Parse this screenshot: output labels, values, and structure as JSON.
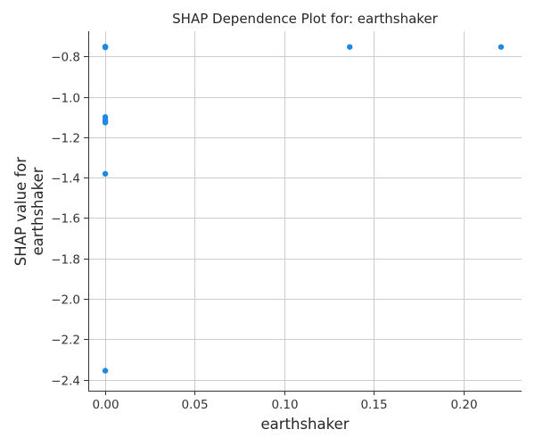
{
  "chart_data": {
    "type": "scatter",
    "title": "SHAP Dependence Plot for: earthshaker",
    "xlabel": "earthshaker",
    "ylabel_lines": [
      "SHAP value for",
      "earthshaker"
    ],
    "xlim": [
      -0.0095,
      0.2325
    ],
    "ylim": [
      -2.455,
      -0.675
    ],
    "xticks": [
      0.0,
      0.05,
      0.1,
      0.15,
      0.2
    ],
    "xtick_labels": [
      "0.00",
      "0.05",
      "0.10",
      "0.15",
      "0.20"
    ],
    "yticks": [
      -0.8,
      -1.0,
      -1.2,
      -1.4,
      -1.6,
      -1.8,
      -2.0,
      -2.2,
      -2.4
    ],
    "ytick_labels": [
      "−0.8",
      "−1.0",
      "−1.2",
      "−1.4",
      "−1.6",
      "−1.8",
      "−2.0",
      "−2.2",
      "−2.4"
    ],
    "grid": true,
    "marker_color": "#1e88e5",
    "points": [
      {
        "x": 0.0,
        "y": -0.753
      },
      {
        "x": 0.0,
        "y": -0.755
      },
      {
        "x": 0.0,
        "y": -0.751
      },
      {
        "x": 0.0,
        "y": -1.1
      },
      {
        "x": 0.0,
        "y": -1.115
      },
      {
        "x": 0.0,
        "y": -1.123
      },
      {
        "x": 0.0,
        "y": -1.127
      },
      {
        "x": 0.0,
        "y": -1.381
      },
      {
        "x": 0.0,
        "y": -2.356
      },
      {
        "x": 0.1365,
        "y": -0.753
      },
      {
        "x": 0.221,
        "y": -0.753
      }
    ]
  }
}
